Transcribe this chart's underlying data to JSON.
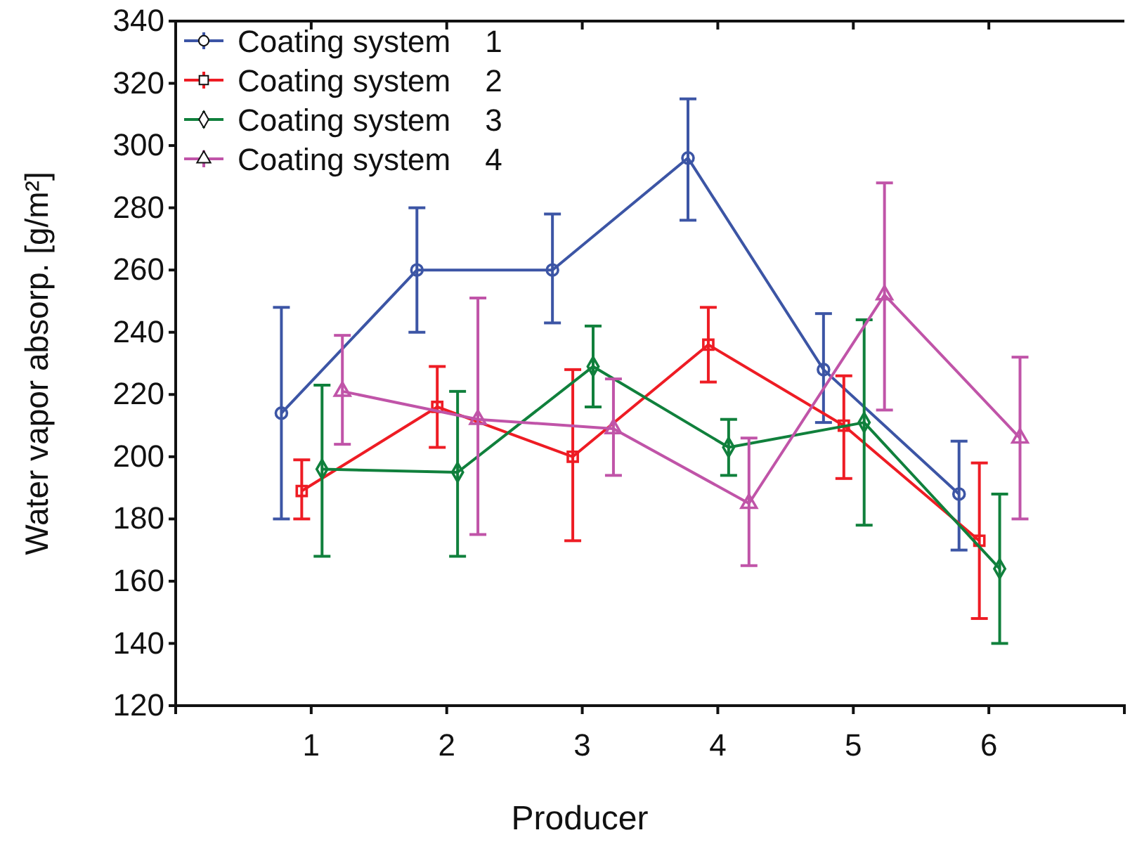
{
  "chart_data": {
    "type": "line",
    "xlabel": "Producer",
    "ylabel": "Water vapor absorp. [g/m²]",
    "xlim": [
      0,
      7
    ],
    "xticks": [
      1,
      2,
      3,
      4,
      5,
      6
    ],
    "ylim": [
      120,
      340
    ],
    "yticks": [
      120,
      140,
      160,
      180,
      200,
      220,
      240,
      260,
      280,
      300,
      320,
      340
    ],
    "grid": false,
    "legend": "top left",
    "line_style": "solid",
    "series": [
      {
        "name": "Coating system    1",
        "color": "#3c55a5",
        "marker": "circle",
        "x": [
          0.78,
          1.78,
          2.78,
          3.78,
          4.78,
          5.78
        ],
        "values": [
          214,
          260,
          260,
          296,
          228,
          188
        ],
        "errors": [
          [
            180,
            248
          ],
          [
            240,
            280
          ],
          [
            243,
            278
          ],
          [
            276,
            315
          ],
          [
            211,
            246
          ],
          [
            170,
            205
          ]
        ]
      },
      {
        "name": "Coating system    2",
        "color": "#ee1c24",
        "marker": "square",
        "x": [
          0.93,
          1.93,
          2.93,
          3.93,
          4.93,
          5.93
        ],
        "values": [
          189,
          216,
          200,
          236,
          210,
          173
        ],
        "errors": [
          [
            180,
            199
          ],
          [
            203,
            229
          ],
          [
            173,
            228
          ],
          [
            224,
            248
          ],
          [
            193,
            226
          ],
          [
            148,
            198
          ]
        ]
      },
      {
        "name": "Coating system    3",
        "color": "#10803c",
        "marker": "diamond",
        "x": [
          1.08,
          2.08,
          3.08,
          4.08,
          5.08,
          6.08
        ],
        "values": [
          196,
          195,
          229,
          203,
          211,
          164
        ],
        "errors": [
          [
            168,
            223
          ],
          [
            168,
            221
          ],
          [
            216,
            242
          ],
          [
            194,
            212
          ],
          [
            178,
            244
          ],
          [
            140,
            188
          ]
        ]
      },
      {
        "name": "Coating system    4",
        "color": "#c054a8",
        "marker": "triangle",
        "x": [
          1.23,
          2.23,
          3.23,
          4.23,
          5.23,
          6.23
        ],
        "values": [
          221,
          212,
          209,
          185,
          252,
          206
        ],
        "errors": [
          [
            204,
            239
          ],
          [
            175,
            251
          ],
          [
            194,
            225
          ],
          [
            165,
            206
          ],
          [
            215,
            288
          ],
          [
            180,
            232
          ]
        ]
      }
    ]
  }
}
